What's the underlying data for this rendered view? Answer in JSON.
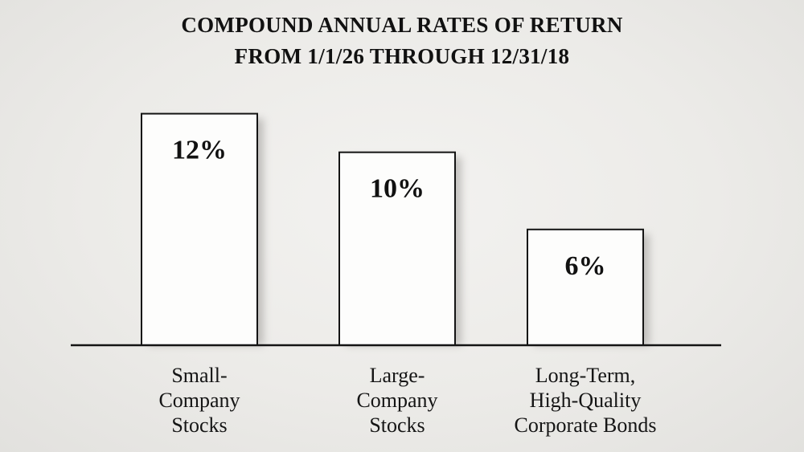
{
  "chart_data": {
    "type": "bar",
    "title": "COMPOUND ANNUAL RATES OF RETURN",
    "subtitle": "FROM 1/1/26 THROUGH 12/31/18",
    "categories": [
      [
        "Small-",
        "Company",
        "Stocks"
      ],
      [
        "Large-",
        "Company",
        "Stocks"
      ],
      [
        "Long-Term,",
        "High-Quality",
        "Corporate Bonds"
      ]
    ],
    "values": [
      12,
      10,
      6
    ],
    "value_labels": [
      "12%",
      "10%",
      "6%"
    ],
    "unit": "%",
    "ylim": [
      0,
      12.4
    ],
    "grid": false,
    "xlabel": "",
    "ylabel": ""
  },
  "colors": {
    "bar_fill": "#fdfdfc",
    "bar_stroke": "#141414",
    "baseline": "#141414"
  }
}
